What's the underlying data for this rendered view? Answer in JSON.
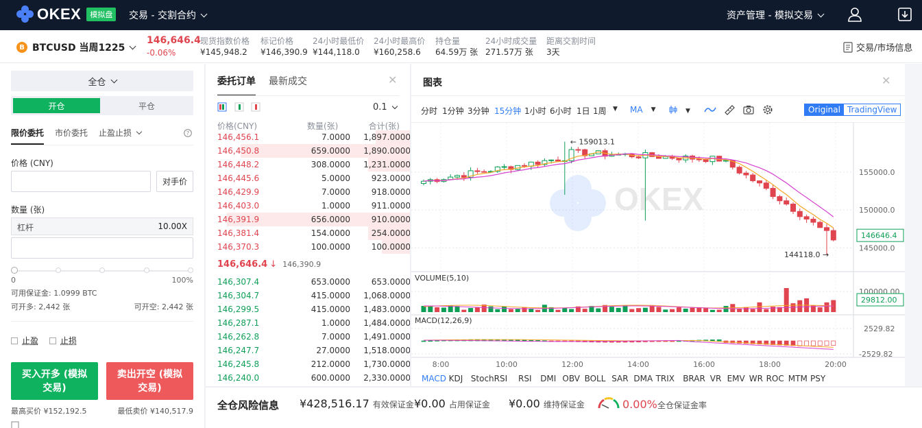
{
  "nav": {
    "logo_text": "OKEX",
    "demo_badge": "模拟盘",
    "trade_menu": "交易 - 交割合约",
    "asset_menu": "资产管理 - 模拟交易"
  },
  "ticker": {
    "coin_letter": "B",
    "instrument": "BTCUSD 当周1225",
    "last_price": "146,646.4",
    "change_pct": "-0.06%",
    "stats": [
      {
        "label": "现货指数价格",
        "value": "¥145,948.2"
      },
      {
        "label": "标记价格",
        "value": "¥146,390.9"
      },
      {
        "label": "24小时最低价",
        "value": "¥144,118.0"
      },
      {
        "label": "24小时最高价",
        "value": "¥160,258.6"
      },
      {
        "label": "持仓量",
        "value": "64.59万 张"
      },
      {
        "label": "24小时成交量",
        "value": "271.57万 张"
      },
      {
        "label": "距离交割时间",
        "value": "3天"
      }
    ],
    "market_info": "交易/市场信息"
  },
  "order_form": {
    "margin_mode": "全仓",
    "tabs": {
      "open": "开仓",
      "close": "平仓"
    },
    "type_tabs": [
      "限价委托",
      "市价委托",
      "止盈止损"
    ],
    "price_label": "价格 (CNY)",
    "price_value": "",
    "counter_price_btn": "对手价",
    "qty_label": "数量 (张)",
    "leverage_label": "杠杆",
    "leverage_value": "10.00X",
    "qty_value": "",
    "slider_min": "0",
    "slider_max": "100%",
    "slider_percent": 0,
    "available_margin": "可用保证金: 1.0999 BTC",
    "can_open_long": "可开多: 2,442 张",
    "can_open_short": "可开空: 2,442 张",
    "take_profit": "止盈",
    "stop_loss": "止损",
    "buy_button": "买入开多 (模拟交易)",
    "sell_button": "卖出开空 (模拟交易)",
    "max_buy": "最高买价 ¥152,192.5",
    "min_sell": "最低卖价 ¥140,517.9"
  },
  "orderbook": {
    "tab_active": "委托订单",
    "tab_other": "最新成交",
    "precision": "0.1",
    "headers": [
      "价格(CNY)",
      "数量(张)",
      "合计(张)"
    ],
    "asks": [
      {
        "price": "146,456.1",
        "qty": "7.0000",
        "total": "1,897.0000",
        "depth": 0.18
      },
      {
        "price": "146,450.8",
        "qty": "659.0000",
        "total": "1,890.0000",
        "depth": 0.88
      },
      {
        "price": "146,448.2",
        "qty": "308.0000",
        "total": "1,231.0000",
        "depth": 0.22
      },
      {
        "price": "146,445.6",
        "qty": "5.0000",
        "total": "923.0000",
        "depth": 0
      },
      {
        "price": "146,429.9",
        "qty": "7.0000",
        "total": "918.0000",
        "depth": 0
      },
      {
        "price": "146,403.0",
        "qty": "1.0000",
        "total": "911.0000",
        "depth": 0
      },
      {
        "price": "146,391.9",
        "qty": "656.0000",
        "total": "910.0000",
        "depth": 0.95
      },
      {
        "price": "146,381.4",
        "qty": "154.0000",
        "total": "254.0000",
        "depth": 0.22
      },
      {
        "price": "146,370.3",
        "qty": "100.0000",
        "total": "100.0000",
        "depth": 0.15
      }
    ],
    "last_price": "146,646.4",
    "last_arrow": "↓",
    "mark_price": "146,390.9",
    "bids": [
      {
        "price": "146,307.4",
        "qty": "653.0000",
        "total": "653.0000"
      },
      {
        "price": "146,304.7",
        "qty": "415.0000",
        "total": "1,068.0000"
      },
      {
        "price": "146,299.5",
        "qty": "415.0000",
        "total": "1,483.0000"
      },
      {
        "price": "146,287.1",
        "qty": "1.0000",
        "total": "1,484.0000"
      },
      {
        "price": "146,262.8",
        "qty": "7.0000",
        "total": "1,491.0000"
      },
      {
        "price": "146,247.7",
        "qty": "27.0000",
        "total": "1,518.0000"
      },
      {
        "price": "146,245.8",
        "qty": "212.0000",
        "total": "1,730.0000"
      },
      {
        "price": "146,240.0",
        "qty": "600.0000",
        "total": "2,330.0000"
      }
    ]
  },
  "chart": {
    "title": "图表",
    "intervals": [
      "分时",
      "1分钟",
      "3分钟",
      "15分钟",
      "1小时",
      "6小时",
      "1日",
      "1周"
    ],
    "active_interval": "15分钟",
    "ma_label": "MA",
    "mode_original": "Original",
    "mode_tv": "TradingView",
    "watermark": "OKEX",
    "price_ticks": [
      "155000.0",
      "150000.0",
      "145000.0"
    ],
    "last_price_tag": "146646.4",
    "high_annot": "← 159013.1",
    "low_annot": "144118.0 →",
    "volume_label": "VOLUME(5,10)",
    "volume_tick": "100000.00",
    "volume_tag": "29812.00",
    "macd_label": "MACD(12,26,9)",
    "macd_ticks": [
      "2529.82",
      "-2529.82"
    ],
    "time_ticks": [
      "8:00",
      "10:00",
      "12:00",
      "14:00",
      "16:00",
      "18:00",
      "20:00"
    ],
    "indicators": [
      "MACD",
      "KDJ",
      "StochRSI",
      "RSI",
      "DMI",
      "OBV",
      "BOLL",
      "SAR",
      "DMA",
      "TRIX",
      "BRAR",
      "VR",
      "EMV",
      "WR",
      "ROC",
      "MTM",
      "PSY"
    ],
    "active_indicator": "MACD",
    "colors": {
      "up": "#0e9f57",
      "down": "#e0444e",
      "ma1": "#f5a623",
      "ma2": "#d63fd0",
      "accent": "#2f7cf6"
    }
  },
  "risk": {
    "title": "全仓风险信息",
    "items": [
      {
        "value": "¥428,516.17",
        "label": "有效保证金"
      },
      {
        "value": "¥0.00",
        "label": "占用保证金"
      },
      {
        "value": "¥0.00",
        "label": "维持保证金"
      }
    ],
    "ratio_value": "0.00%",
    "ratio_label": "全仓保证金率"
  }
}
